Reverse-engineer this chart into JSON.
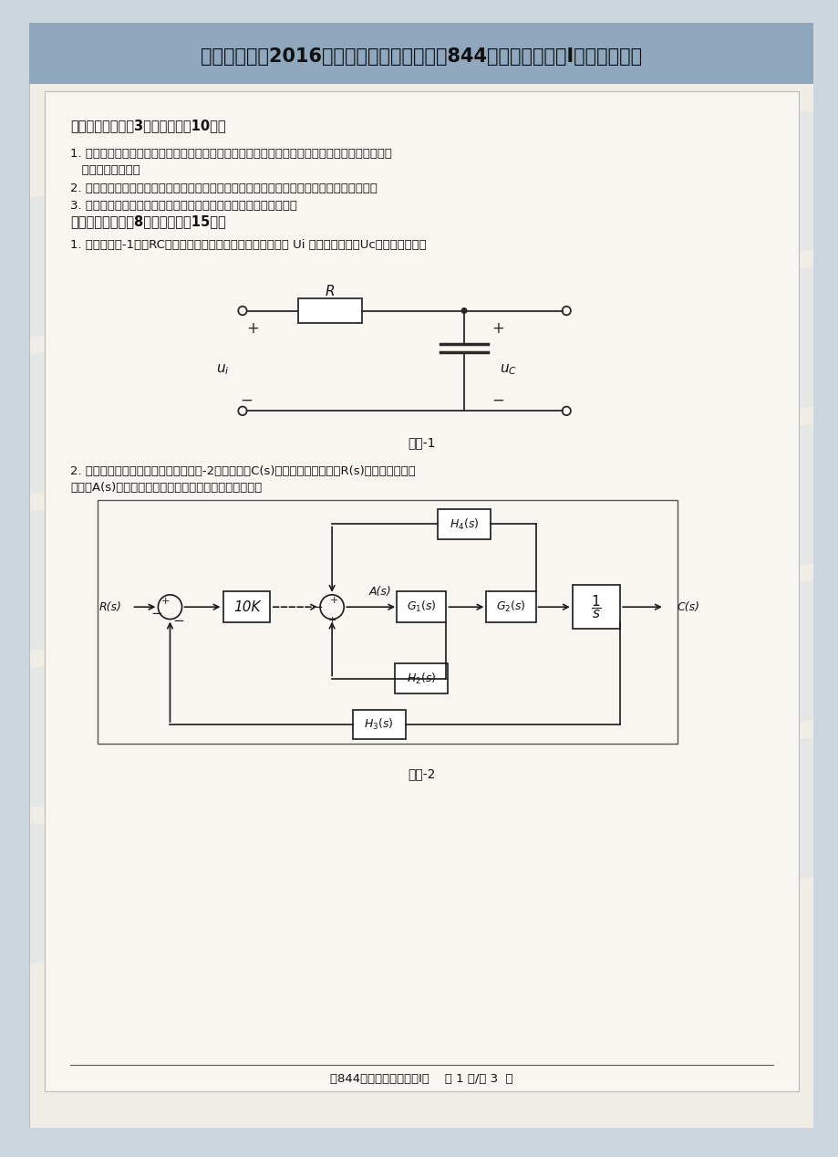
{
  "bg_color": "#cdd5de",
  "page_bg": "#f0ede6",
  "title": "浙江工业大学2016年硕士研究生入学考试《844自动控制原理（I）》考研真题",
  "title_fontsize": 15,
  "title_color": "#1a1a1a",
  "section1_header": "一、简答题：（共3小题，每小题10分）",
  "section1_q1a": "1. 请简述控制理论中系统的概念，并给出根据建模途径不同进行分类的的两种常用数学建模方法的",
  "section1_q1b": "   名称和基本原理。",
  "section1_q2": "2. 请简述线性定常系统的开环、闭环控制和复合控制的的定义，并给出闭环控制的一个例子。",
  "section1_q3": "3. 请简述自动控制中系统校正的概念，并给出滞后校正的基本原理。",
  "section2_header": "二、计算题：（共8小题，每小题15分）",
  "section2_q1": "1. 请根据题图-1给出RC网络构成的一阶电路的微分方程，已知 Ui 是系统的输入，Uc是系统的输出。",
  "fig1_caption": "题图-1",
  "section2_q2a": "2. 已知一无人机的航向控制系统如题图-2所示，其中C(s)无人机的实际航向，R(s)是无人机给定的",
  "section2_q2b": "航向，A(s)是飞机舵的角度，试求系统的闭环传递函数。",
  "fig2_caption": "题图-2",
  "footer": "（844）自动控制原理（I）    第 1 页/共 3  页"
}
